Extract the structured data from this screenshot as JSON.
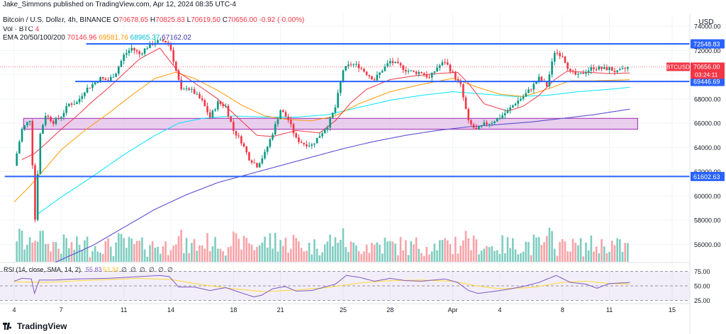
{
  "header": {
    "published": "Jake_Simmons published on TradingView.com, Apr 12, 2024 08:35 UTC-4",
    "symbol": "Bitcoin / U.S. Dollar, 4h, BINANCE",
    "ohlc": [
      {
        "label": "O",
        "value": "70678.65"
      },
      {
        "label": "H",
        "value": "70825.83"
      },
      {
        "label": "L",
        "value": "70619.50"
      },
      {
        "label": "C",
        "value": "70656.00"
      }
    ],
    "change": "-0.92 (-0.00%)",
    "vol_label": "Vol · BTC",
    "vol_value": "4",
    "ema_label": "EMA 20/50/100/200",
    "ema_values": [
      "70146.96",
      "69581.76",
      "68965.37",
      "67162.02"
    ],
    "rsi_label": "RSI (14, close, SMA, 14, 2)",
    "rsi_value": "55.83",
    "rsi_sma_value": "53.34",
    "rsi_na": [
      "∅",
      "∅",
      "∅",
      "∅",
      "∅",
      "∅"
    ]
  },
  "footer": {
    "brand": "TradingView"
  },
  "colors": {
    "up": "#089981",
    "down": "#f23645",
    "vol_up": "#7fcdc0",
    "vol_down": "#f7a3a8",
    "ema20": "#f23645",
    "ema50": "#ff9800",
    "ema100": "#00e5ff",
    "ema200": "#5b4fcf",
    "level": "#2962ff",
    "zone_fill": "#e1bee7",
    "zone_border": "#9c27b0",
    "rsi_line": "#7e57c2",
    "rsi_sma": "#fdd835"
  },
  "chart_data": {
    "type": "candlestick",
    "title": "Bitcoin / U.S. Dollar, 4h, BINANCE",
    "currency_label": "USD",
    "ylim": [
      54500,
      75000
    ],
    "y_ticks": [
      56000,
      58000,
      60000,
      62000,
      64000,
      66000,
      68000,
      70000,
      72000,
      74000
    ],
    "y_tick_labels": [
      "56000.00",
      "58000.00",
      "60000.00",
      "62000.00",
      "64000.00",
      "66000.00",
      "68000.00",
      "70000.00",
      "72000.00",
      "74000.00"
    ],
    "x_ticks": [
      {
        "label": "4",
        "day": 4
      },
      {
        "label": "7",
        "day": 7
      },
      {
        "label": "11",
        "day": 11
      },
      {
        "label": "14",
        "day": 14
      },
      {
        "label": "18",
        "day": 18
      },
      {
        "label": "21",
        "day": 21
      },
      {
        "label": "25",
        "day": 25
      },
      {
        "label": "28",
        "day": 28
      },
      {
        "label": "Apr",
        "day": 32
      },
      {
        "label": "4",
        "day": 35
      },
      {
        "label": "8",
        "day": 39
      },
      {
        "label": "11",
        "day": 42
      },
      {
        "label": "15",
        "day": 46
      }
    ],
    "x_range_days": [
      3.4,
      45.9
    ],
    "levels": [
      {
        "price": 72548.83,
        "label": "72548.83",
        "start_day": 8.6
      },
      {
        "price": 69446.69,
        "label": "69446.69",
        "start_day": 7.9
      },
      {
        "price": 61602.63,
        "label": "61602.63",
        "start_day": 3.4
      }
    ],
    "zone": {
      "low": 65500,
      "high": 66400,
      "start_day": 4.6,
      "end_day": 43.8
    },
    "last_price": {
      "symbol": "BTCUSD",
      "price": "70656.00",
      "countdown": "03:24:11",
      "value": 70656
    },
    "price_anchors": [
      [
        4.0,
        62500
      ],
      [
        4.5,
        65500
      ],
      [
        5.0,
        66300
      ],
      [
        5.1,
        64500
      ],
      [
        5.35,
        57600
      ],
      [
        5.6,
        64800
      ],
      [
        6.0,
        66700
      ],
      [
        6.5,
        66100
      ],
      [
        7.0,
        66600
      ],
      [
        7.5,
        67600
      ],
      [
        8.0,
        67700
      ],
      [
        8.5,
        68700
      ],
      [
        9.0,
        69200
      ],
      [
        9.5,
        69700
      ],
      [
        10.0,
        69500
      ],
      [
        10.5,
        70200
      ],
      [
        11.0,
        71600
      ],
      [
        11.5,
        72200
      ],
      [
        12.0,
        71700
      ],
      [
        12.5,
        72300
      ],
      [
        13.0,
        72700
      ],
      [
        13.5,
        72800
      ],
      [
        13.9,
        72600
      ],
      [
        14.3,
        70500
      ],
      [
        14.7,
        68500
      ],
      [
        15.0,
        69000
      ],
      [
        15.5,
        68500
      ],
      [
        16.0,
        67800
      ],
      [
        16.5,
        66500
      ],
      [
        17.0,
        67700
      ],
      [
        17.5,
        67400
      ],
      [
        18.0,
        65400
      ],
      [
        18.5,
        64500
      ],
      [
        19.0,
        63100
      ],
      [
        19.5,
        62500
      ],
      [
        20.0,
        63500
      ],
      [
        20.5,
        65200
      ],
      [
        21.0,
        67100
      ],
      [
        21.5,
        66300
      ],
      [
        22.0,
        64700
      ],
      [
        22.5,
        64300
      ],
      [
        23.0,
        64200
      ],
      [
        23.5,
        65000
      ],
      [
        24.0,
        65800
      ],
      [
        24.5,
        67300
      ],
      [
        25.0,
        70400
      ],
      [
        25.5,
        70900
      ],
      [
        26.0,
        70700
      ],
      [
        26.5,
        70100
      ],
      [
        27.0,
        69600
      ],
      [
        27.5,
        70400
      ],
      [
        28.0,
        71100
      ],
      [
        28.5,
        70800
      ],
      [
        29.0,
        70400
      ],
      [
        29.5,
        70200
      ],
      [
        30.0,
        70200
      ],
      [
        30.5,
        69700
      ],
      [
        31.0,
        70600
      ],
      [
        31.5,
        71100
      ],
      [
        32.0,
        70100
      ],
      [
        32.5,
        69100
      ],
      [
        33.0,
        66100
      ],
      [
        33.5,
        65400
      ],
      [
        34.0,
        65900
      ],
      [
        34.5,
        66100
      ],
      [
        35.0,
        66500
      ],
      [
        35.5,
        67000
      ],
      [
        36.0,
        67700
      ],
      [
        36.5,
        68200
      ],
      [
        37.0,
        68900
      ],
      [
        37.5,
        69700
      ],
      [
        38.0,
        69100
      ],
      [
        38.5,
        71900
      ],
      [
        39.0,
        71600
      ],
      [
        39.5,
        70200
      ],
      [
        40.0,
        69900
      ],
      [
        40.5,
        70300
      ],
      [
        41.0,
        70600
      ],
      [
        41.5,
        70500
      ],
      [
        42.0,
        70500
      ],
      [
        42.5,
        70200
      ],
      [
        43.0,
        70500
      ],
      [
        43.3,
        70656
      ]
    ],
    "ema_anchors": {
      "ema20": [
        [
          4.5,
          63000
        ],
        [
          5.3,
          63500
        ],
        [
          6,
          64300
        ],
        [
          7,
          65500
        ],
        [
          8,
          66600
        ],
        [
          9,
          67800
        ],
        [
          10,
          68900
        ],
        [
          11,
          70100
        ],
        [
          12,
          71300
        ],
        [
          13.3,
          72200
        ],
        [
          14.5,
          70200
        ],
        [
          16,
          68900
        ],
        [
          17,
          68000
        ],
        [
          18.5,
          66200
        ],
        [
          19.5,
          65000
        ],
        [
          20.5,
          64900
        ],
        [
          22,
          65400
        ],
        [
          23.5,
          65200
        ],
        [
          24.5,
          66200
        ],
        [
          25.5,
          67700
        ],
        [
          26.5,
          68800
        ],
        [
          28,
          69600
        ],
        [
          29.5,
          69900
        ],
        [
          31,
          70100
        ],
        [
          32.3,
          70200
        ],
        [
          33,
          69300
        ],
        [
          34,
          67600
        ],
        [
          35.5,
          67000
        ],
        [
          36.5,
          67400
        ],
        [
          37.5,
          68300
        ],
        [
          38.5,
          69600
        ],
        [
          39.3,
          70300
        ],
        [
          40.5,
          70200
        ],
        [
          42,
          70100
        ],
        [
          43.3,
          70147
        ]
      ],
      "ema50": [
        [
          4,
          59500
        ],
        [
          5,
          60800
        ],
        [
          6,
          62300
        ],
        [
          7,
          63800
        ],
        [
          8.5,
          65400
        ],
        [
          10,
          66800
        ],
        [
          11.5,
          68300
        ],
        [
          13,
          69700
        ],
        [
          14.3,
          70200
        ],
        [
          15.5,
          69700
        ],
        [
          17,
          68700
        ],
        [
          18.5,
          67500
        ],
        [
          20,
          66600
        ],
        [
          21.5,
          66300
        ],
        [
          23,
          66200
        ],
        [
          24.5,
          66600
        ],
        [
          26,
          67600
        ],
        [
          28,
          68600
        ],
        [
          30,
          69200
        ],
        [
          32,
          69700
        ],
        [
          33.5,
          69000
        ],
        [
          35,
          68400
        ],
        [
          36.5,
          68200
        ],
        [
          38,
          68800
        ],
        [
          39.5,
          69500
        ],
        [
          41,
          69500
        ],
        [
          43.3,
          69582
        ]
      ],
      "ema100": [
        [
          5.5,
          58500
        ],
        [
          7,
          59900
        ],
        [
          9,
          61600
        ],
        [
          11,
          63400
        ],
        [
          13,
          65000
        ],
        [
          14.5,
          66000
        ],
        [
          16,
          66400
        ],
        [
          18,
          66600
        ],
        [
          20,
          66500
        ],
        [
          22,
          66500
        ],
        [
          24,
          66700
        ],
        [
          26,
          67300
        ],
        [
          28,
          67900
        ],
        [
          30,
          68300
        ],
        [
          32,
          68600
        ],
        [
          34,
          68400
        ],
        [
          36,
          68200
        ],
        [
          38,
          68300
        ],
        [
          40,
          68600
        ],
        [
          42,
          68800
        ],
        [
          43.3,
          68965
        ]
      ],
      "ema200": [
        [
          6.6,
          54500
        ],
        [
          9,
          55900
        ],
        [
          11,
          57400
        ],
        [
          13,
          58900
        ],
        [
          15,
          60100
        ],
        [
          17,
          61100
        ],
        [
          19,
          61800
        ],
        [
          21,
          62500
        ],
        [
          23,
          63200
        ],
        [
          25,
          63900
        ],
        [
          27,
          64500
        ],
        [
          29,
          65000
        ],
        [
          31,
          65400
        ],
        [
          33,
          65700
        ],
        [
          35,
          65900
        ],
        [
          37,
          66100
        ],
        [
          39,
          66400
        ],
        [
          41,
          66700
        ],
        [
          43.3,
          67162
        ]
      ]
    },
    "rsi": {
      "levels": [
        75,
        50,
        25
      ],
      "level_labels": [
        "75.00",
        "50.00",
        "25.00"
      ],
      "current": 55.83,
      "sma": 53.34,
      "anchors": [
        [
          4,
          58
        ],
        [
          4.5,
          63
        ],
        [
          5.1,
          62
        ],
        [
          5.3,
          37
        ],
        [
          5.6,
          60
        ],
        [
          6.5,
          60
        ],
        [
          8,
          62
        ],
        [
          10,
          63
        ],
        [
          12,
          66
        ],
        [
          13.3,
          68
        ],
        [
          13.9,
          66
        ],
        [
          14.5,
          48
        ],
        [
          15.5,
          48
        ],
        [
          16.5,
          42
        ],
        [
          17.5,
          47
        ],
        [
          18.5,
          38
        ],
        [
          19.3,
          31
        ],
        [
          19.8,
          34
        ],
        [
          20.5,
          45
        ],
        [
          21.3,
          49
        ],
        [
          22,
          41
        ],
        [
          23,
          42
        ],
        [
          24.5,
          53
        ],
        [
          25.2,
          68
        ],
        [
          26,
          65
        ],
        [
          27,
          58
        ],
        [
          28,
          63
        ],
        [
          29,
          59
        ],
        [
          30,
          58
        ],
        [
          31.5,
          62
        ],
        [
          32.3,
          56
        ],
        [
          33,
          42
        ],
        [
          33.6,
          37
        ],
        [
          34.5,
          40
        ],
        [
          35.5,
          44
        ],
        [
          36.5,
          49
        ],
        [
          37.5,
          56
        ],
        [
          38.6,
          68
        ],
        [
          39.5,
          56
        ],
        [
          40.5,
          53
        ],
        [
          41.2,
          46
        ],
        [
          42,
          54
        ],
        [
          43.3,
          55.83
        ]
      ],
      "sma_anchors": [
        [
          4,
          57
        ],
        [
          6,
          56
        ],
        [
          9,
          60
        ],
        [
          12,
          63
        ],
        [
          14,
          61
        ],
        [
          16,
          52
        ],
        [
          18,
          45
        ],
        [
          20,
          40
        ],
        [
          22,
          43
        ],
        [
          24,
          47
        ],
        [
          26,
          55
        ],
        [
          28,
          59
        ],
        [
          30,
          60
        ],
        [
          32,
          58
        ],
        [
          33.5,
          50
        ],
        [
          35,
          45
        ],
        [
          37,
          47
        ],
        [
          39,
          56
        ],
        [
          40.5,
          58
        ],
        [
          42,
          54
        ],
        [
          43.3,
          53.34
        ]
      ]
    }
  }
}
